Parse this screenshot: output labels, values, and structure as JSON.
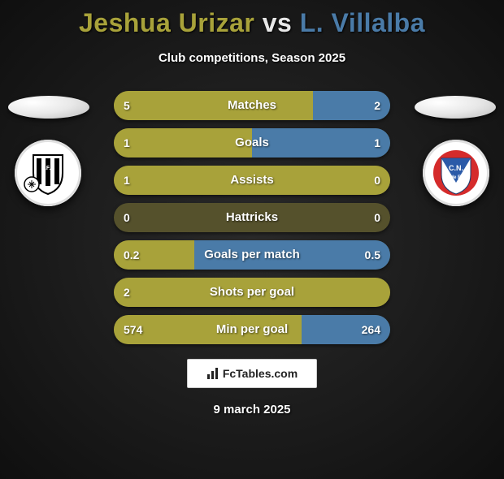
{
  "header": {
    "player1": "Jeshua Urizar",
    "vs": "vs",
    "player2": "L. Villalba",
    "subtitle": "Club competitions, Season 2025",
    "player1_color": "#a8a23a",
    "player2_color": "#4a7ba8"
  },
  "teams": {
    "left": {
      "name": "Liverpool FC (Uruguay)",
      "shield_stripes": "#000000",
      "shield_bg": "#ffffff"
    },
    "right": {
      "name": "Club Nacional",
      "shield_bg": "#ffffff",
      "shield_accent": "#d52b2b",
      "shield_main": "#2b5aa8"
    }
  },
  "stats": {
    "bar_bg": "#55512c",
    "left_fill_color": "#a8a23a",
    "right_fill_color": "#4a7ba8",
    "rows": [
      {
        "label": "Matches",
        "left": "5",
        "right": "2",
        "left_pct": 72,
        "right_pct": 28
      },
      {
        "label": "Goals",
        "left": "1",
        "right": "1",
        "left_pct": 50,
        "right_pct": 50
      },
      {
        "label": "Assists",
        "left": "1",
        "right": "0",
        "left_pct": 100,
        "right_pct": 0
      },
      {
        "label": "Hattricks",
        "left": "0",
        "right": "0",
        "left_pct": 0,
        "right_pct": 0
      },
      {
        "label": "Goals per match",
        "left": "0.2",
        "right": "0.5",
        "left_pct": 29,
        "right_pct": 71
      },
      {
        "label": "Shots per goal",
        "left": "2",
        "right": "",
        "left_pct": 100,
        "right_pct": 0
      },
      {
        "label": "Min per goal",
        "left": "574",
        "right": "264",
        "left_pct": 68,
        "right_pct": 32
      }
    ]
  },
  "brand": {
    "text": "FcTables.com"
  },
  "date": "9 march 2025"
}
